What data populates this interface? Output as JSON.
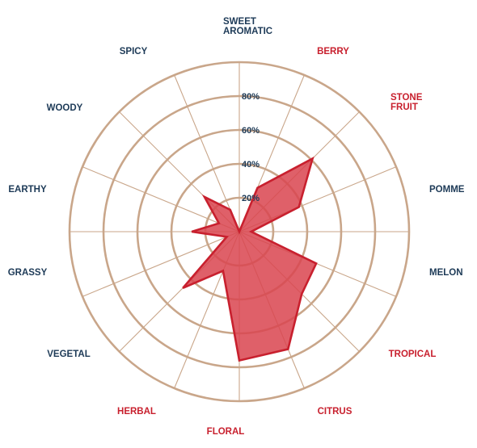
{
  "chart_data": {
    "type": "radar",
    "colors": {
      "grid": "#c9a68a",
      "fill": "#d9444f",
      "fill_opacity": 0.85,
      "stroke": "#c8202e",
      "label_dark": "#1d3a57",
      "label_red": "#c8202e",
      "tick": "#1d3a57"
    },
    "rlim": [
      0,
      100
    ],
    "ticks": [
      {
        "value": 20,
        "label": "20%"
      },
      {
        "value": 40,
        "label": "40%"
      },
      {
        "value": 60,
        "label": "60%"
      },
      {
        "value": 80,
        "label": "80%"
      }
    ],
    "axes": [
      {
        "name": "sweet-aromatic",
        "lines": [
          "SWEET",
          "AROMATIC"
        ],
        "highlight": false,
        "value": 0
      },
      {
        "name": "berry",
        "lines": [
          "BERRY"
        ],
        "highlight": true,
        "value": 28
      },
      {
        "name": "stone-fruit",
        "lines": [
          "STONE",
          "FRUIT"
        ],
        "highlight": true,
        "value": 61
      },
      {
        "name": "pomme",
        "lines": [
          "POMME"
        ],
        "highlight": false,
        "value": 38
      },
      {
        "name": "melon",
        "lines": [
          "MELON"
        ],
        "highlight": false,
        "value": 7
      },
      {
        "name": "melon-2",
        "lines": [],
        "highlight": false,
        "value": 49
      },
      {
        "name": "tropical",
        "lines": [
          "TROPICAL"
        ],
        "highlight": true,
        "value": 52
      },
      {
        "name": "citrus",
        "lines": [
          "CITRUS"
        ],
        "highlight": true,
        "value": 75
      },
      {
        "name": "citrus-2",
        "lines": [],
        "highlight": false,
        "value": 76
      },
      {
        "name": "floral",
        "lines": [
          "FLORAL"
        ],
        "highlight": true,
        "value": 25
      },
      {
        "name": "herbal",
        "lines": [
          "HERBAL"
        ],
        "highlight": true,
        "value": 47
      },
      {
        "name": "vegetal",
        "lines": [
          "VEGETAL"
        ],
        "highlight": false,
        "value": 8
      },
      {
        "name": "grassy",
        "lines": [
          "GRASSY"
        ],
        "highlight": false,
        "value": 28
      },
      {
        "name": "earthy",
        "lines": [
          "EARTHY"
        ],
        "highlight": false,
        "value": 13
      },
      {
        "name": "woody",
        "lines": [
          "WOODY"
        ],
        "highlight": false,
        "value": 29
      },
      {
        "name": "spicy",
        "lines": [
          "SPICY"
        ],
        "highlight": false,
        "value": 14
      }
    ],
    "label_anchors": [
      {
        "name": "sweet-aromatic",
        "anchor": "start",
        "dx": 0
      },
      {
        "name": "berry",
        "anchor": "middle",
        "dx": 0
      },
      {
        "name": "stone-fruit",
        "anchor": "start",
        "dx": 0
      },
      {
        "name": "pomme",
        "anchor": "start",
        "dx": 0
      },
      {
        "name": "melon",
        "anchor": "start",
        "dx": 0
      },
      {
        "name": "tropical",
        "anchor": "middle",
        "dx": 0
      },
      {
        "name": "citrus",
        "anchor": "middle",
        "dx": 0
      },
      {
        "name": "floral",
        "anchor": "middle",
        "dx": 0
      },
      {
        "name": "herbal",
        "anchor": "middle",
        "dx": 0
      },
      {
        "name": "vegetal",
        "anchor": "middle",
        "dx": 0
      },
      {
        "name": "grassy",
        "anchor": "middle",
        "dx": 0
      },
      {
        "name": "earthy",
        "anchor": "middle",
        "dx": 0
      },
      {
        "name": "woody",
        "anchor": "middle",
        "dx": 0
      },
      {
        "name": "spicy",
        "anchor": "middle",
        "dx": 0
      }
    ],
    "grid": true
  }
}
